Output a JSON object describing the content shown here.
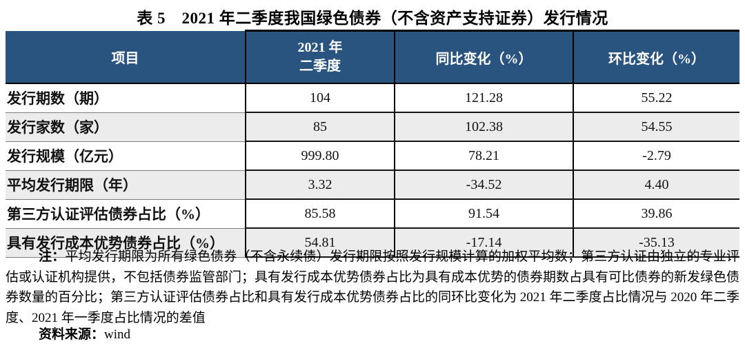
{
  "title": "表 5　2021 年二季度我国绿色债券（不含资产支持证券）发行情况",
  "table": {
    "header": {
      "item": "项目",
      "q_line1": "2021 年",
      "q_line2": "二季度",
      "yoy": "同比变化（%）",
      "qoq": "环比变化（%）"
    },
    "rows": [
      {
        "label": "发行期数（期）",
        "values": [
          "104",
          "121.28",
          "55.22"
        ]
      },
      {
        "label": "发行家数（家）",
        "values": [
          "85",
          "102.38",
          "54.55"
        ]
      },
      {
        "label": "发行规模（亿元）",
        "values": [
          "999.80",
          "78.21",
          "-2.79"
        ]
      },
      {
        "label": "平均发行期限（年）",
        "values": [
          "3.32",
          "-34.52",
          "4.40"
        ]
      },
      {
        "label": "第三方认证评估债券占比（%）",
        "values": [
          "85.58",
          "91.54",
          "39.86"
        ]
      },
      {
        "label": "具有发行成本优势债券占比（%）",
        "values": [
          "54.81",
          "-17.14",
          "-35.13"
        ]
      }
    ]
  },
  "note": {
    "label": "注：",
    "text": "平均发行期限为所有绿色债券（不含永续债）发行期限按照发行规模计算的加权平均数；第三方认证由独立的专业评估或认证机构提供，不包括债券监管部门；具有发行成本优势债券占比为具有成本优势的债券期数占具有可比债券的新发绿色债券数量的百分比；第三方认证评估债券占比和具有发行成本优势债券占比的同环比变化为 2021 年二季度占比情况与 2020 年二季度、2021 年一季度占比情况的差值"
  },
  "source": {
    "label": "资料来源：",
    "value": "wind"
  },
  "colors": {
    "header_bg": "#2A5480",
    "header_text": "#FFFFFF",
    "row_alt_bg": "#ECECEC",
    "border": "#000000",
    "text": "#111111"
  },
  "chart_data": {
    "type": "table",
    "title": "表 5　2021 年二季度我国绿色债券（不含资产支持证券）发行情况",
    "columns": [
      "项目",
      "2021 年二季度",
      "同比变化（%）",
      "环比变化（%）"
    ],
    "rows": [
      [
        "发行期数（期）",
        104,
        121.28,
        55.22
      ],
      [
        "发行家数（家）",
        85,
        102.38,
        54.55
      ],
      [
        "发行规模（亿元）",
        999.8,
        78.21,
        -2.79
      ],
      [
        "平均发行期限（年）",
        3.32,
        -34.52,
        4.4
      ],
      [
        "第三方认证评估债券占比（%）",
        85.58,
        91.54,
        39.86
      ],
      [
        "具有发行成本优势债券占比（%）",
        54.81,
        -17.14,
        -35.13
      ]
    ],
    "source": "wind"
  }
}
